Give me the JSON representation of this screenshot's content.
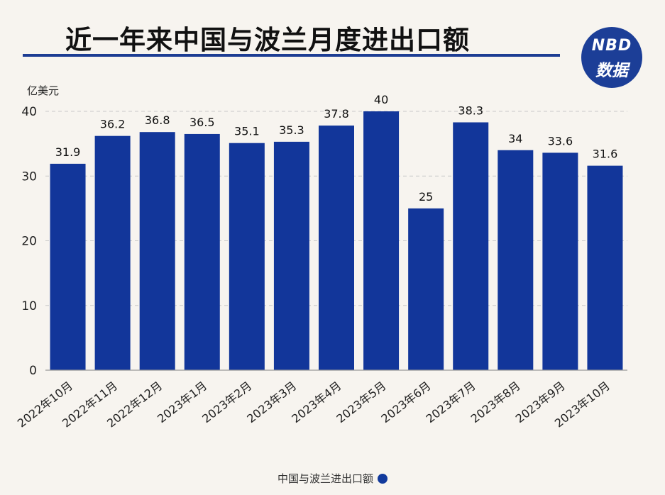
{
  "header": {
    "title": "近一年来中国与波兰月度进出口额",
    "logo_top": "NBD",
    "logo_bottom": "数据"
  },
  "colors": {
    "bar": "#12369a",
    "title_rule": "#1d3d93",
    "logo_bg": "#1c3e97",
    "background": "#f7f4ef"
  },
  "chart_data": {
    "type": "bar",
    "title": "近一年来中国与波兰月度进出口额",
    "ylabel": "亿美元",
    "xlabel": "",
    "ylim": [
      0,
      40
    ],
    "yticks": [
      0,
      10,
      20,
      30,
      40
    ],
    "grid": true,
    "legend_position": "bottom-center",
    "categories": [
      "2022年10月",
      "2022年11月",
      "2022年12月",
      "2023年1月",
      "2023年2月",
      "2023年3月",
      "2023年4月",
      "2023年5月",
      "2023年6月",
      "2023年7月",
      "2023年8月",
      "2023年9月",
      "2023年10月"
    ],
    "series": [
      {
        "name": "中国与波兰进出口额",
        "values": [
          31.9,
          36.2,
          36.8,
          36.5,
          35.1,
          35.3,
          37.8,
          40,
          25,
          38.3,
          34,
          33.6,
          31.6
        ],
        "labels": [
          "31.9",
          "36.2",
          "36.8",
          "36.5",
          "35.1",
          "35.3",
          "37.8",
          "40",
          "25",
          "38.3",
          "34",
          "33.6",
          "31.6"
        ]
      }
    ]
  }
}
